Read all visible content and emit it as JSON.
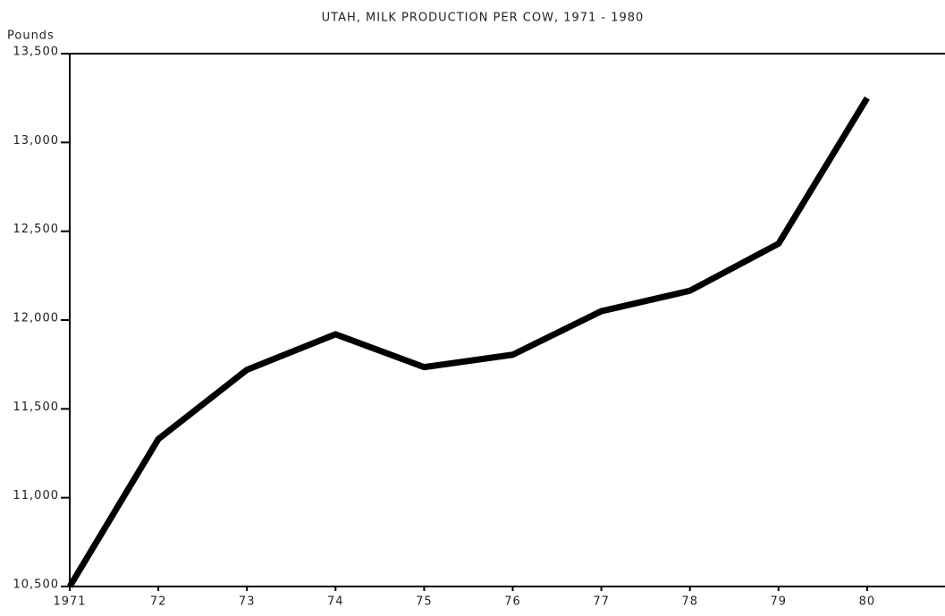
{
  "chart_data": {
    "type": "line",
    "title": "UTAH, MILK PRODUCTION PER COW, 1971 - 1980",
    "y_axis_label": "Pounds",
    "categories": [
      "1971",
      "72",
      "73",
      "74",
      "75",
      "76",
      "77",
      "78",
      "79",
      "80"
    ],
    "series": [
      {
        "name": "Milk production per cow",
        "color": "#000000",
        "values": [
          10500,
          11330,
          11720,
          11920,
          11735,
          11805,
          12050,
          12165,
          12430,
          13250
        ]
      }
    ],
    "ylim": [
      10500,
      13500
    ],
    "yticks": [
      {
        "value": 10500,
        "label": "10,500"
      },
      {
        "value": 11000,
        "label": "11,000"
      },
      {
        "value": 11500,
        "label": "11,500"
      },
      {
        "value": 12000,
        "label": "12,000"
      },
      {
        "value": 12500,
        "label": "12,500"
      },
      {
        "value": 13000,
        "label": "13,000"
      },
      {
        "value": 13500,
        "label": "13,500"
      }
    ]
  }
}
